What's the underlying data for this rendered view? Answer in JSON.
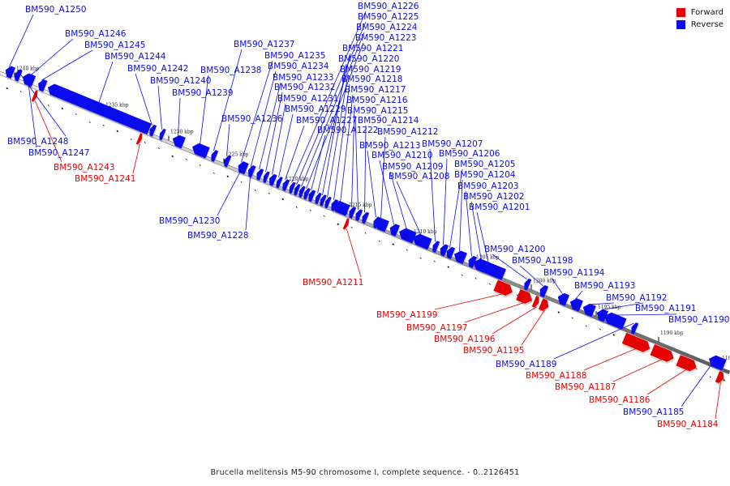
{
  "caption": "Brucella melitensis M5-90 chromosome I, complete sequence. - 0..2126451",
  "legend": [
    {
      "label": "Forward",
      "color": "#e60000"
    },
    {
      "label": "Reverse",
      "color": "#0a0aee"
    }
  ],
  "colors": {
    "forward": "#e60000",
    "reverse": "#0a0aee",
    "backbone": "#888888"
  },
  "ticks": [
    "1240 kbp",
    "1235 kbp",
    "1230 kbp",
    "1225 kbp",
    "1220 kbp",
    "1215 kbp",
    "1210 kbp",
    "1205 kbp",
    "1200 kbp",
    "1195 kbp",
    "1190 kbp",
    "1185 kbp"
  ],
  "genes": [
    {
      "name": "BM590_A1250",
      "strand": "reverse"
    },
    {
      "name": "BM590_A1248",
      "strand": "reverse"
    },
    {
      "name": "BM590_A1247",
      "strand": "reverse"
    },
    {
      "name": "BM590_A1246",
      "strand": "reverse"
    },
    {
      "name": "BM590_A1245",
      "strand": "reverse"
    },
    {
      "name": "BM590_A1244",
      "strand": "reverse"
    },
    {
      "name": "BM590_A1243",
      "strand": "forward"
    },
    {
      "name": "BM590_A1242",
      "strand": "reverse"
    },
    {
      "name": "BM590_A1241",
      "strand": "forward"
    },
    {
      "name": "BM590_A1240",
      "strand": "reverse"
    },
    {
      "name": "BM590_A1239",
      "strand": "reverse"
    },
    {
      "name": "BM590_A1238",
      "strand": "reverse"
    },
    {
      "name": "BM590_A1237",
      "strand": "reverse"
    },
    {
      "name": "BM590_A1236",
      "strand": "reverse"
    },
    {
      "name": "BM590_A1235",
      "strand": "reverse"
    },
    {
      "name": "BM590_A1234",
      "strand": "reverse"
    },
    {
      "name": "BM590_A1233",
      "strand": "reverse"
    },
    {
      "name": "BM590_A1232",
      "strand": "reverse"
    },
    {
      "name": "BM590_A1231",
      "strand": "reverse"
    },
    {
      "name": "BM590_A1230",
      "strand": "reverse"
    },
    {
      "name": "BM590_A1229",
      "strand": "reverse"
    },
    {
      "name": "BM590_A1228",
      "strand": "reverse"
    },
    {
      "name": "BM590_A1227",
      "strand": "reverse"
    },
    {
      "name": "BM590_A1226",
      "strand": "reverse"
    },
    {
      "name": "BM590_A1225",
      "strand": "reverse"
    },
    {
      "name": "BM590_A1224",
      "strand": "reverse"
    },
    {
      "name": "BM590_A1223",
      "strand": "reverse"
    },
    {
      "name": "BM590_A1222",
      "strand": "reverse"
    },
    {
      "name": "BM590_A1221",
      "strand": "reverse"
    },
    {
      "name": "BM590_A1220",
      "strand": "reverse"
    },
    {
      "name": "BM590_A1219",
      "strand": "reverse"
    },
    {
      "name": "BM590_A1218",
      "strand": "reverse"
    },
    {
      "name": "BM590_A1217",
      "strand": "reverse"
    },
    {
      "name": "BM590_A1216",
      "strand": "reverse"
    },
    {
      "name": "BM590_A1215",
      "strand": "reverse"
    },
    {
      "name": "BM590_A1214",
      "strand": "reverse"
    },
    {
      "name": "BM590_A1213",
      "strand": "reverse"
    },
    {
      "name": "BM590_A1212",
      "strand": "reverse"
    },
    {
      "name": "BM590_A1211",
      "strand": "forward"
    },
    {
      "name": "BM590_A1210",
      "strand": "reverse"
    },
    {
      "name": "BM590_A1209",
      "strand": "reverse"
    },
    {
      "name": "BM590_A1208",
      "strand": "reverse"
    },
    {
      "name": "BM590_A1207",
      "strand": "reverse"
    },
    {
      "name": "BM590_A1206",
      "strand": "reverse"
    },
    {
      "name": "BM590_A1205",
      "strand": "reverse"
    },
    {
      "name": "BM590_A1204",
      "strand": "reverse"
    },
    {
      "name": "BM590_A1203",
      "strand": "reverse"
    },
    {
      "name": "BM590_A1202",
      "strand": "reverse"
    },
    {
      "name": "BM590_A1201",
      "strand": "reverse"
    },
    {
      "name": "BM590_A1200",
      "strand": "reverse"
    },
    {
      "name": "BM590_A1199",
      "strand": "forward"
    },
    {
      "name": "BM590_A1198",
      "strand": "reverse"
    },
    {
      "name": "BM590_A1197",
      "strand": "forward"
    },
    {
      "name": "BM590_A1196",
      "strand": "forward"
    },
    {
      "name": "BM590_A1195",
      "strand": "forward"
    },
    {
      "name": "BM590_A1194",
      "strand": "reverse"
    },
    {
      "name": "BM590_A1193",
      "strand": "reverse"
    },
    {
      "name": "BM590_A1192",
      "strand": "reverse"
    },
    {
      "name": "BM590_A1191",
      "strand": "reverse"
    },
    {
      "name": "BM590_A1190",
      "strand": "reverse"
    },
    {
      "name": "BM590_A1189",
      "strand": "reverse"
    },
    {
      "name": "BM590_A1188",
      "strand": "forward"
    },
    {
      "name": "BM590_A1187",
      "strand": "forward"
    },
    {
      "name": "BM590_A1186",
      "strand": "forward"
    },
    {
      "name": "BM590_A1185",
      "strand": "reverse"
    },
    {
      "name": "BM590_A1184",
      "strand": "forward"
    }
  ]
}
